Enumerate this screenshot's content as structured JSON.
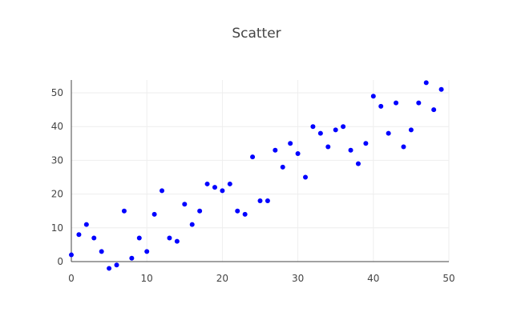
{
  "chart_data": {
    "type": "scatter",
    "title": "Scatter",
    "xlabel": "",
    "ylabel": "",
    "xlim": [
      0,
      50
    ],
    "ylim": [
      -2.5,
      54
    ],
    "grid": true,
    "x_ticks": [
      "0",
      "10",
      "20",
      "30",
      "40",
      "50"
    ],
    "y_ticks": [
      "0",
      "10",
      "20",
      "30",
      "40",
      "50"
    ],
    "marker_color": "#0000ff",
    "series": [
      {
        "x": [
          0,
          1,
          2,
          3,
          4,
          5,
          6,
          7,
          8,
          9,
          10,
          11,
          12,
          13,
          14,
          15,
          16,
          17,
          18,
          19,
          20,
          21,
          22,
          23,
          24,
          25,
          26,
          27,
          28,
          29,
          30,
          31,
          32,
          33,
          34,
          35,
          36,
          37,
          38,
          39,
          40,
          41,
          42,
          43,
          44,
          45,
          46,
          47,
          48,
          49
        ],
        "y": [
          2,
          8,
          11,
          7,
          3,
          -2,
          -1,
          15,
          1,
          7,
          3,
          14,
          21,
          7,
          6,
          17,
          11,
          15,
          23,
          22,
          21,
          23,
          15,
          14,
          31,
          18,
          18,
          33,
          28,
          35,
          32,
          25,
          40,
          38,
          34,
          39,
          40,
          33,
          29,
          35,
          49,
          46,
          38,
          47,
          34,
          39,
          47,
          53,
          45,
          51
        ]
      }
    ]
  }
}
